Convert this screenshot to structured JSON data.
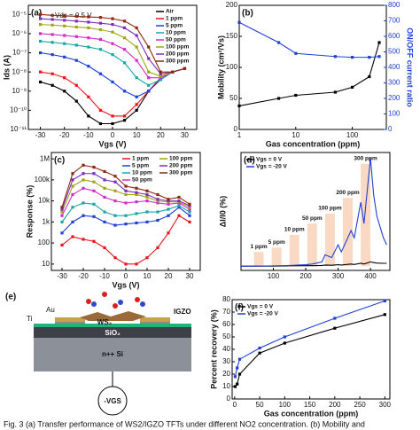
{
  "chart_data": [
    {
      "type": "line",
      "label": "(a)",
      "annotation": "Vds = 0.5 V",
      "xlabel": "Vgs (V)",
      "ylabel": "Ids (A)",
      "logy": true,
      "legend": "upper right",
      "x": [
        -30,
        -25,
        -20,
        -15,
        -10,
        -5,
        0,
        5,
        10,
        15,
        20,
        25,
        30
      ],
      "xlim": [
        -35,
        35
      ],
      "xticks": [
        -30,
        -20,
        -10,
        0,
        10,
        20,
        30
      ],
      "ylim": [
        1e-11,
        3e-05
      ],
      "yticks": [
        {
          "value": 1e-11,
          "label": "10⁻¹¹"
        },
        {
          "value": 1e-10,
          "label": "10⁻¹⁰"
        },
        {
          "value": 1e-09,
          "label": "10⁻⁹"
        },
        {
          "value": 1e-08,
          "label": "10⁻⁸"
        },
        {
          "value": 1e-07,
          "label": "10⁻⁷"
        },
        {
          "value": 1e-06,
          "label": "10⁻⁶"
        },
        {
          "value": 1e-05,
          "label": "10⁻⁵"
        }
      ],
      "series": [
        {
          "name": "Air",
          "color": "#000000",
          "values": [
            3e-09,
            2e-09,
            1e-09,
            3e-10,
            5e-11,
            2e-11,
            2e-11,
            3e-11,
            1e-10,
            1e-09,
            5e-09,
            1e-08,
            1.5e-08
          ]
        },
        {
          "name": "1 ppm",
          "color": "#e8141c",
          "values": [
            1e-08,
            8e-09,
            5e-09,
            2e-09,
            5e-10,
            1e-10,
            5e-11,
            5e-11,
            2e-10,
            1e-09,
            5e-09,
            1e-08,
            1.5e-08
          ]
        },
        {
          "name": "5 ppm",
          "color": "#1f3fd6",
          "values": [
            1e-07,
            8e-08,
            6e-08,
            4e-08,
            2e-08,
            8e-09,
            3e-09,
            1e-09,
            5e-10,
            1e-09,
            4e-09,
            1e-08,
            1.5e-08
          ]
        },
        {
          "name": "10 ppm",
          "color": "#1aa6a6",
          "values": [
            4e-07,
            3.5e-07,
            3e-07,
            2.5e-07,
            2e-07,
            1.5e-07,
            8e-08,
            3e-08,
            5e-09,
            2e-09,
            4e-09,
            1e-08,
            1.5e-08
          ]
        },
        {
          "name": "50 ppm",
          "color": "#d42bc8",
          "values": [
            1e-06,
            9e-07,
            8e-07,
            7e-07,
            6e-07,
            5e-07,
            3e-07,
            1.5e-07,
            4e-08,
            5e-09,
            5e-09,
            1e-08,
            1.5e-08
          ]
        },
        {
          "name": "100 ppm",
          "color": "#a3a31a",
          "values": [
            3e-06,
            2.8e-06,
            2.5e-06,
            2.2e-06,
            2e-06,
            1.6e-06,
            1.2e-06,
            6e-07,
            2e-07,
            1e-08,
            6e-09,
            1e-08,
            1.5e-08
          ]
        },
        {
          "name": "200 ppm",
          "color": "#7a2fb8",
          "values": [
            6e-06,
            5.5e-06,
            5e-06,
            4.5e-06,
            4e-06,
            3.5e-06,
            3e-06,
            2e-06,
            8e-07,
            5e-08,
            8e-09,
            1e-08,
            1.5e-08
          ]
        },
        {
          "name": "300 ppm",
          "color": "#8b2a12",
          "values": [
            1e-05,
            9e-06,
            8.5e-06,
            8e-06,
            7.5e-06,
            7e-06,
            6e-06,
            4.5e-06,
            2e-06,
            2e-07,
            1e-08,
            1e-08,
            1.5e-08
          ]
        }
      ]
    },
    {
      "type": "line",
      "label": "(b)",
      "xlabel": "Gas concentration (ppm)",
      "ylabel": "Mobility (cm²/Vs)",
      "y2label": "ON/OFF current ratio",
      "logx": true,
      "x": [
        1,
        5,
        10,
        50,
        100,
        200,
        300
      ],
      "xlim": [
        1,
        400
      ],
      "xticks": [
        1,
        10,
        100
      ],
      "ylim": [
        0,
        200
      ],
      "yticks": [
        0,
        50,
        100,
        150,
        200
      ],
      "y2lim": [
        0,
        800
      ],
      "y2ticks": [
        0,
        100,
        200,
        300,
        400,
        500,
        600,
        700,
        800
      ],
      "series": [
        {
          "name": "Mobility",
          "color": "#000000",
          "values": [
            38,
            50,
            55,
            60,
            68,
            85,
            140
          ]
        },
        {
          "name": "ON/OFF current ratio",
          "color": "#1f3fd6",
          "axis": "y2",
          "values": [
            690,
            560,
            490,
            470,
            465,
            465,
            470
          ]
        }
      ]
    },
    {
      "type": "line",
      "label": "(c)",
      "xlabel": "Vgs (V)",
      "ylabel": "Response (%)",
      "logy": true,
      "legend": "upper right",
      "x": [
        -30,
        -25,
        -20,
        -15,
        -10,
        -5,
        0,
        5,
        10,
        15,
        20,
        25,
        30
      ],
      "xlim": [
        -35,
        35
      ],
      "xticks": [
        -30,
        -20,
        -10,
        0,
        10,
        20,
        30
      ],
      "ylim": [
        5,
        2000000
      ],
      "yticks": [
        10,
        100,
        {
          "value": 1000,
          "label": "1k"
        },
        {
          "value": 10000,
          "label": "10k"
        },
        {
          "value": 100000,
          "label": "100k"
        },
        {
          "value": 1000000,
          "label": "1M"
        }
      ],
      "series": [
        {
          "name": "1 ppm",
          "color": "#e8141c",
          "values": [
            80,
            200,
            150,
            120,
            60,
            20,
            10,
            10,
            20,
            60,
            300,
            2000,
            1000
          ]
        },
        {
          "name": "5 ppm",
          "color": "#1f3fd6",
          "values": [
            300,
            1000,
            2000,
            1800,
            1000,
            700,
            800,
            900,
            1000,
            1200,
            2000,
            5000,
            2000
          ]
        },
        {
          "name": "10 ppm",
          "color": "#1aa6a6",
          "values": [
            1000,
            5000,
            8000,
            7000,
            3000,
            2000,
            2000,
            2500,
            3000,
            3000,
            4000,
            6000,
            3000
          ]
        },
        {
          "name": "50 ppm",
          "color": "#d42bc8",
          "values": [
            2000,
            20000,
            40000,
            30000,
            15000,
            10000,
            8000,
            9000,
            10000,
            8000,
            7000,
            8000,
            4000
          ]
        },
        {
          "name": "100 ppm",
          "color": "#a3a31a",
          "values": [
            3000,
            50000,
            100000,
            80000,
            40000,
            30000,
            20000,
            20000,
            15000,
            10000,
            9000,
            9000,
            5000
          ]
        },
        {
          "name": "200 ppm",
          "color": "#7a2fb8",
          "values": [
            4000,
            100000,
            200000,
            200000,
            100000,
            80000,
            30000,
            25000,
            20000,
            12000,
            10000,
            10000,
            6000
          ]
        },
        {
          "name": "300 ppm",
          "color": "#8b2a12",
          "values": [
            5000,
            200000,
            500000,
            400000,
            250000,
            150000,
            50000,
            40000,
            30000,
            20000,
            12000,
            15000,
            7000
          ]
        }
      ]
    },
    {
      "type": "line",
      "label": "(d)",
      "ylabel": "ΔI/I0 (%)",
      "legend": "upper left",
      "nomarkers": true,
      "x": [
        0,
        50,
        100,
        150,
        200,
        220,
        250,
        260,
        280,
        300,
        310,
        340,
        350,
        370,
        380,
        400,
        410,
        420,
        440,
        450
      ],
      "xlim": [
        0,
        460
      ],
      "xticks": [
        100,
        200,
        300,
        400
      ],
      "ylim": [
        -30,
        800
      ],
      "exposures": [
        {
          "label": "1 ppm",
          "start": 40,
          "end": 70,
          "height": 100
        },
        {
          "label": "5 ppm",
          "start": 95,
          "end": 125,
          "height": 130
        },
        {
          "label": "10 ppm",
          "start": 150,
          "end": 180,
          "height": 220
        },
        {
          "label": "50 ppm",
          "start": 205,
          "end": 235,
          "height": 300
        },
        {
          "label": "100 ppm",
          "start": 260,
          "end": 290,
          "height": 370
        },
        {
          "label": "200 ppm",
          "start": 315,
          "end": 345,
          "height": 480
        },
        {
          "label": "300 ppm",
          "start": 370,
          "end": 400,
          "height": 720
        }
      ],
      "series": [
        {
          "name": "Vgs = 0 V",
          "color": "#000000",
          "values": [
            0,
            0,
            0,
            2,
            3,
            3,
            5,
            8,
            6,
            10,
            8,
            15,
            12,
            20,
            15,
            30,
            25,
            22,
            20,
            20
          ]
        },
        {
          "name": "Vgs = -20 V",
          "color": "#1f3fd6",
          "values": [
            0,
            0,
            2,
            5,
            10,
            15,
            30,
            80,
            60,
            150,
            100,
            250,
            200,
            450,
            300,
            760,
            500,
            350,
            200,
            150
          ]
        }
      ]
    },
    {
      "type": "line",
      "label": "(f)",
      "xlabel": "Gas concentration (ppm)",
      "ylabel": "Percent recovery (%)",
      "legend": "upper left",
      "x": [
        1,
        5,
        10,
        50,
        100,
        200,
        300
      ],
      "xlim": [
        -5,
        310
      ],
      "xticks": [
        0,
        50,
        100,
        150,
        200,
        250,
        300
      ],
      "ylim": [
        0,
        80
      ],
      "yticks": [
        0,
        10,
        20,
        30,
        40,
        50,
        60,
        70,
        80
      ],
      "series": [
        {
          "name": "Vgs = 0 V",
          "color": "#000000",
          "values": [
            10,
            12,
            20,
            37,
            45,
            57,
            68
          ]
        },
        {
          "name": "Vgs = -20 V",
          "color": "#1f3fd6",
          "values": [
            18,
            25,
            32,
            41,
            50,
            65,
            79
          ]
        }
      ]
    }
  ],
  "diagram": {
    "label": "(e)",
    "au": "Au",
    "ti": "Ti",
    "ws2": "WS₂",
    "igzo": "IGZO",
    "sio2": "SiO₂",
    "si": "n++ Si",
    "gate": "-VGS"
  },
  "caption": "Fig. 3 (a) Transfer performance of WS2/IGZO TFTs under different NO2 concentration. (b) Mobility and"
}
